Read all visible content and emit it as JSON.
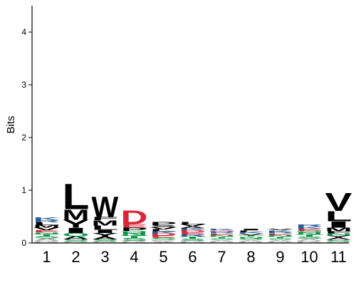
{
  "chart_data": {
    "type": "sequence-logo",
    "ylabel": "Bits",
    "ylim": [
      0,
      4.5
    ],
    "yticks": [
      0,
      1,
      2,
      3,
      4
    ],
    "positions": [
      "1",
      "2",
      "3",
      "4",
      "5",
      "6",
      "7",
      "8",
      "9",
      "10",
      "11"
    ],
    "colors": {
      "hydrophobic": "#000000",
      "polar": "#109648",
      "basic": "#255C99",
      "acidic": "#D62839",
      "amide": "#A23B72",
      "small": "#AAAAAA"
    },
    "columns": [
      {
        "position": "1",
        "letters": [
          {
            "aa": "G",
            "bits": 0.04,
            "group": "small"
          },
          {
            "aa": "A",
            "bits": 0.05,
            "group": "small"
          },
          {
            "aa": "S",
            "bits": 0.04,
            "group": "polar"
          },
          {
            "aa": "T",
            "bits": 0.04,
            "group": "polar"
          },
          {
            "aa": "N",
            "bits": 0.03,
            "group": "polar"
          },
          {
            "aa": "E",
            "bits": 0.04,
            "group": "acidic"
          },
          {
            "aa": "V",
            "bits": 0.05,
            "group": "hydrophobic"
          },
          {
            "aa": "M",
            "bits": 0.05,
            "group": "hydrophobic"
          },
          {
            "aa": "L",
            "bits": 0.05,
            "group": "hydrophobic"
          },
          {
            "aa": "R",
            "bits": 0.04,
            "group": "basic"
          },
          {
            "aa": "K",
            "bits": 0.05,
            "group": "basic"
          }
        ]
      },
      {
        "position": "2",
        "letters": [
          {
            "aa": "G",
            "bits": 0.03,
            "group": "small"
          },
          {
            "aa": "S",
            "bits": 0.04,
            "group": "polar"
          },
          {
            "aa": "A",
            "bits": 0.06,
            "group": "hydrophobic"
          },
          {
            "aa": "Q",
            "bits": 0.06,
            "group": "polar"
          },
          {
            "aa": "I",
            "bits": 0.1,
            "group": "hydrophobic"
          },
          {
            "aa": "Y",
            "bits": 0.15,
            "group": "hydrophobic"
          },
          {
            "aa": "M",
            "bits": 0.2,
            "group": "hydrophobic"
          },
          {
            "aa": "L",
            "bits": 0.5,
            "group": "hydrophobic"
          }
        ]
      },
      {
        "position": "3",
        "letters": [
          {
            "aa": "G",
            "bits": 0.03,
            "group": "small"
          },
          {
            "aa": "S",
            "bits": 0.04,
            "group": "polar"
          },
          {
            "aa": "A",
            "bits": 0.05,
            "group": "hydrophobic"
          },
          {
            "aa": "Y",
            "bits": 0.07,
            "group": "hydrophobic"
          },
          {
            "aa": "I",
            "bits": 0.06,
            "group": "hydrophobic"
          },
          {
            "aa": "L",
            "bits": 0.08,
            "group": "hydrophobic"
          },
          {
            "aa": "M",
            "bits": 0.1,
            "group": "hydrophobic"
          },
          {
            "aa": "F",
            "bits": 0.06,
            "group": "hydrophobic"
          },
          {
            "aa": "W",
            "bits": 0.4,
            "group": "hydrophobic"
          }
        ]
      },
      {
        "position": "4",
        "letters": [
          {
            "aa": "G",
            "bits": 0.04,
            "group": "small"
          },
          {
            "aa": "S",
            "bits": 0.05,
            "group": "polar"
          },
          {
            "aa": "T",
            "bits": 0.05,
            "group": "polar"
          },
          {
            "aa": "N",
            "bits": 0.05,
            "group": "polar"
          },
          {
            "aa": "Q",
            "bits": 0.04,
            "group": "polar"
          },
          {
            "aa": "P",
            "bits": 0.06,
            "group": "hydrophobic"
          },
          {
            "aa": "E",
            "bits": 0.07,
            "group": "acidic"
          },
          {
            "aa": "D",
            "bits": 0.27,
            "group": "acidic"
          }
        ]
      },
      {
        "position": "5",
        "letters": [
          {
            "aa": "A",
            "bits": 0.03,
            "group": "small"
          },
          {
            "aa": "G",
            "bits": 0.03,
            "group": "small"
          },
          {
            "aa": "S",
            "bits": 0.04,
            "group": "polar"
          },
          {
            "aa": "E",
            "bits": 0.04,
            "group": "acidic"
          },
          {
            "aa": "D",
            "bits": 0.04,
            "group": "acidic"
          },
          {
            "aa": "K",
            "bits": 0.04,
            "group": "basic"
          },
          {
            "aa": "L",
            "bits": 0.04,
            "group": "hydrophobic"
          },
          {
            "aa": "V",
            "bits": 0.04,
            "group": "hydrophobic"
          },
          {
            "aa": "S",
            "bits": 0.04,
            "group": "hydrophobic"
          },
          {
            "aa": "P",
            "bits": 0.06,
            "group": "hydrophobic"
          }
        ]
      },
      {
        "position": "6",
        "letters": [
          {
            "aa": "G",
            "bits": 0.04,
            "group": "small"
          },
          {
            "aa": "S",
            "bits": 0.04,
            "group": "polar"
          },
          {
            "aa": "T",
            "bits": 0.04,
            "group": "polar"
          },
          {
            "aa": "R",
            "bits": 0.04,
            "group": "basic"
          },
          {
            "aa": "E",
            "bits": 0.04,
            "group": "acidic"
          },
          {
            "aa": "D",
            "bits": 0.04,
            "group": "acidic"
          },
          {
            "aa": "K",
            "bits": 0.04,
            "group": "basic"
          },
          {
            "aa": "A",
            "bits": 0.04,
            "group": "hydrophobic"
          },
          {
            "aa": "V",
            "bits": 0.04,
            "group": "hydrophobic"
          },
          {
            "aa": "L",
            "bits": 0.04,
            "group": "hydrophobic"
          }
        ]
      },
      {
        "position": "7",
        "letters": [
          {
            "aa": "G",
            "bits": 0.03,
            "group": "small"
          },
          {
            "aa": "A",
            "bits": 0.03,
            "group": "small"
          },
          {
            "aa": "S",
            "bits": 0.03,
            "group": "polar"
          },
          {
            "aa": "T",
            "bits": 0.03,
            "group": "polar"
          },
          {
            "aa": "N",
            "bits": 0.03,
            "group": "polar"
          },
          {
            "aa": "E",
            "bits": 0.03,
            "group": "acidic"
          },
          {
            "aa": "R",
            "bits": 0.03,
            "group": "basic"
          },
          {
            "aa": "Q",
            "bits": 0.03,
            "group": "amide"
          },
          {
            "aa": "K",
            "bits": 0.03,
            "group": "basic"
          }
        ]
      },
      {
        "position": "8",
        "letters": [
          {
            "aa": "G",
            "bits": 0.03,
            "group": "small"
          },
          {
            "aa": "A",
            "bits": 0.03,
            "group": "small"
          },
          {
            "aa": "S",
            "bits": 0.03,
            "group": "polar"
          },
          {
            "aa": "N",
            "bits": 0.03,
            "group": "polar"
          },
          {
            "aa": "T",
            "bits": 0.03,
            "group": "polar"
          },
          {
            "aa": "V",
            "bits": 0.03,
            "group": "hydrophobic"
          },
          {
            "aa": "K",
            "bits": 0.03,
            "group": "basic"
          },
          {
            "aa": "L",
            "bits": 0.03,
            "group": "hydrophobic"
          },
          {
            "aa": "I",
            "bits": 0.03,
            "group": "hydrophobic"
          }
        ]
      },
      {
        "position": "9",
        "letters": [
          {
            "aa": "G",
            "bits": 0.03,
            "group": "small"
          },
          {
            "aa": "A",
            "bits": 0.03,
            "group": "small"
          },
          {
            "aa": "S",
            "bits": 0.03,
            "group": "polar"
          },
          {
            "aa": "T",
            "bits": 0.03,
            "group": "polar"
          },
          {
            "aa": "N",
            "bits": 0.03,
            "group": "polar"
          },
          {
            "aa": "E",
            "bits": 0.03,
            "group": "acidic"
          },
          {
            "aa": "R",
            "bits": 0.03,
            "group": "basic"
          },
          {
            "aa": "K",
            "bits": 0.03,
            "group": "basic"
          },
          {
            "aa": "V",
            "bits": 0.03,
            "group": "hydrophobic"
          }
        ]
      },
      {
        "position": "10",
        "letters": [
          {
            "aa": "G",
            "bits": 0.04,
            "group": "small"
          },
          {
            "aa": "A",
            "bits": 0.04,
            "group": "small"
          },
          {
            "aa": "S",
            "bits": 0.04,
            "group": "polar"
          },
          {
            "aa": "T",
            "bits": 0.04,
            "group": "polar"
          },
          {
            "aa": "N",
            "bits": 0.04,
            "group": "polar"
          },
          {
            "aa": "Q",
            "bits": 0.03,
            "group": "polar"
          },
          {
            "aa": "E",
            "bits": 0.04,
            "group": "acidic"
          },
          {
            "aa": "K",
            "bits": 0.04,
            "group": "basic"
          },
          {
            "aa": "R",
            "bits": 0.04,
            "group": "basic"
          }
        ]
      },
      {
        "position": "11",
        "letters": [
          {
            "aa": "G",
            "bits": 0.03,
            "group": "small"
          },
          {
            "aa": "S",
            "bits": 0.03,
            "group": "polar"
          },
          {
            "aa": "A",
            "bits": 0.04,
            "group": "hydrophobic"
          },
          {
            "aa": "Y",
            "bits": 0.04,
            "group": "hydrophobic"
          },
          {
            "aa": "N",
            "bits": 0.04,
            "group": "polar"
          },
          {
            "aa": "F",
            "bits": 0.04,
            "group": "hydrophobic"
          },
          {
            "aa": "M",
            "bits": 0.07,
            "group": "hydrophobic"
          },
          {
            "aa": "I",
            "bits": 0.12,
            "group": "hydrophobic"
          },
          {
            "aa": "L",
            "bits": 0.2,
            "group": "hydrophobic"
          },
          {
            "aa": "V",
            "bits": 0.35,
            "group": "hydrophobic"
          }
        ]
      }
    ]
  }
}
